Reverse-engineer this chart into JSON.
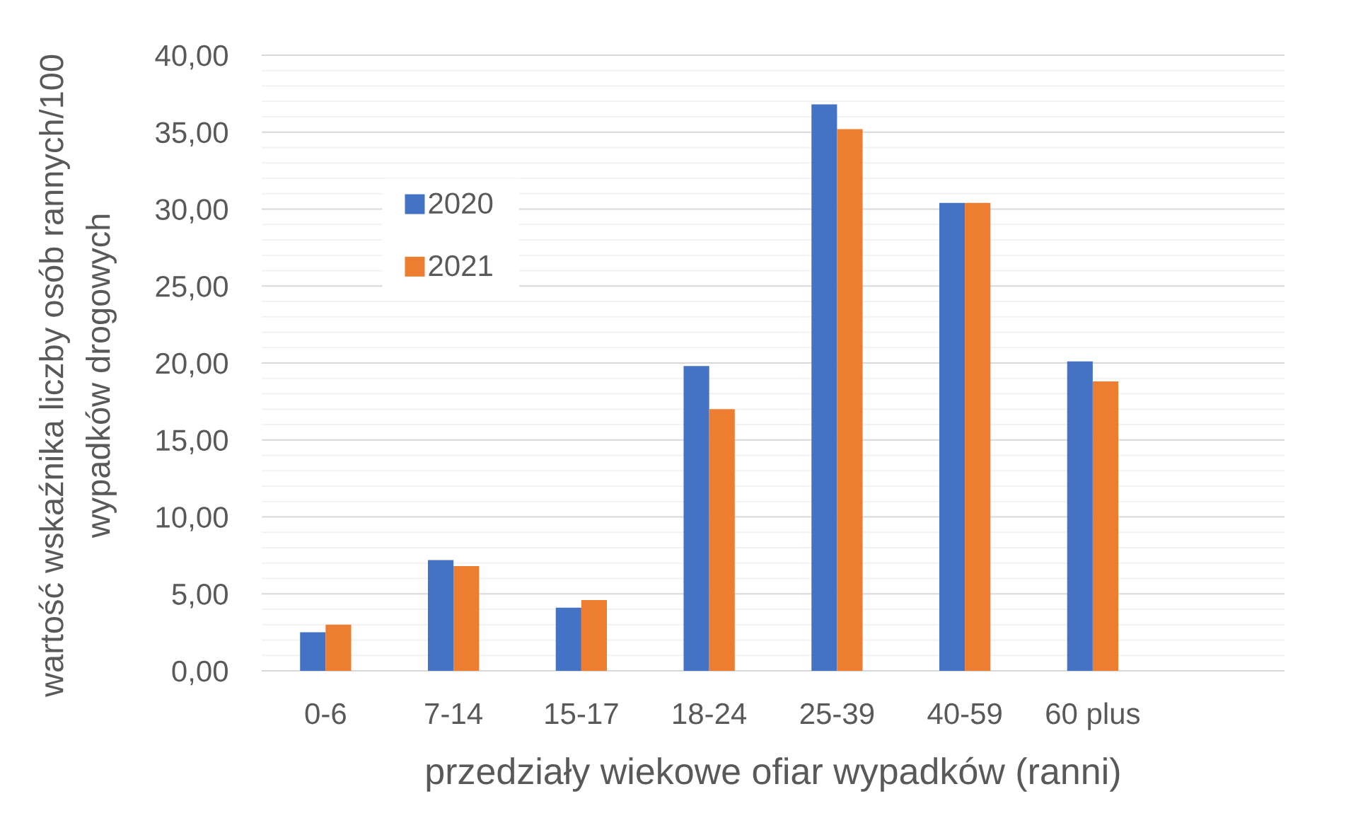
{
  "chart_data": {
    "type": "bar",
    "xlabel": "przedziały wiekowe ofiar wypadków (ranni)",
    "ylabel": "wartość wskaźnika liczby osób rannych/100 wypadków drogowych",
    "categories": [
      "0-6",
      "7-14",
      "15-17",
      "18-24",
      "25-39",
      "40-59",
      "60 plus",
      null
    ],
    "series": [
      {
        "name": "2020",
        "color": "#4472c4",
        "values": [
          2.5,
          7.2,
          4.1,
          19.8,
          36.8,
          30.4,
          20.1,
          null
        ]
      },
      {
        "name": "2021",
        "color": "#ed7d31",
        "values": [
          3.0,
          6.8,
          4.6,
          17.0,
          35.2,
          30.4,
          18.8,
          null
        ]
      }
    ],
    "ylim": [
      0,
      40
    ],
    "yticks": [
      {
        "value": 0,
        "label": "0,00"
      },
      {
        "value": 5,
        "label": "5,00"
      },
      {
        "value": 10,
        "label": "10,00"
      },
      {
        "value": 15,
        "label": "15,00"
      },
      {
        "value": 20,
        "label": "20,00"
      },
      {
        "value": 25,
        "label": "25,00"
      },
      {
        "value": 30,
        "label": "30,00"
      },
      {
        "value": 35,
        "label": "35,00"
      },
      {
        "value": 40,
        "label": "40,00"
      }
    ],
    "grid": "y",
    "legend": "top left"
  }
}
